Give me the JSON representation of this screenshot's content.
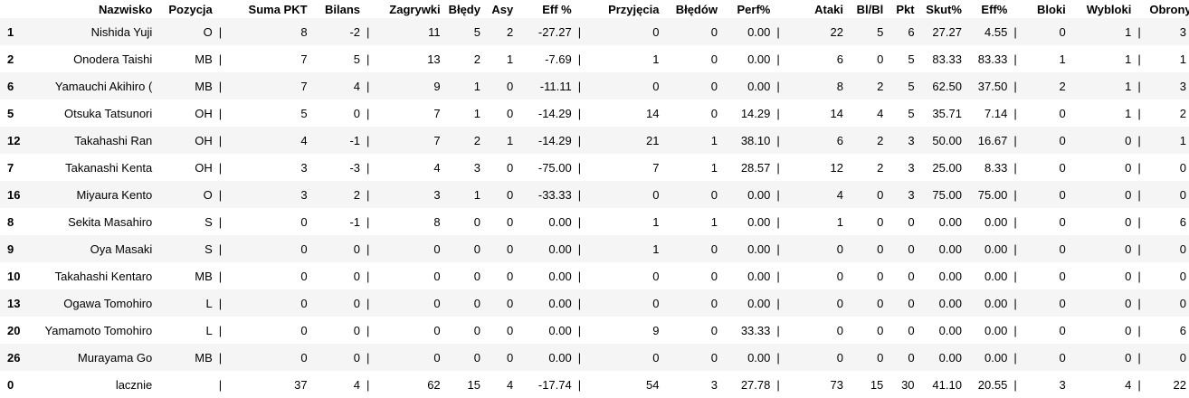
{
  "table": {
    "columns": [
      "",
      "Nazwisko",
      "Pozycja",
      "",
      "Suma PKT",
      "Bilans",
      "",
      "Zagrywki",
      "Błędy",
      "Asy",
      "Eff %",
      "",
      "Przyjęcia",
      "Błędów",
      "Perf%",
      "",
      "Ataki",
      "Bl/Bl",
      "Pkt",
      "Skut%",
      "Eff%",
      "",
      "Bloki",
      "Wybloki",
      "",
      "Obrony"
    ],
    "rows": [
      [
        "1",
        "Nishida Yuji",
        "O",
        "|",
        "8",
        "-2",
        "|",
        "11",
        "5",
        "2",
        "-27.27",
        "|",
        "0",
        "0",
        "0.00",
        "|",
        "22",
        "5",
        "6",
        "27.27",
        "4.55",
        "|",
        "0",
        "1",
        "|",
        "3"
      ],
      [
        "2",
        "Onodera Taishi",
        "MB",
        "|",
        "7",
        "5",
        "|",
        "13",
        "2",
        "1",
        "-7.69",
        "|",
        "1",
        "0",
        "0.00",
        "|",
        "6",
        "0",
        "5",
        "83.33",
        "83.33",
        "|",
        "1",
        "1",
        "|",
        "1"
      ],
      [
        "6",
        "Yamauchi Akihiro (",
        "MB",
        "|",
        "7",
        "4",
        "|",
        "9",
        "1",
        "0",
        "-11.11",
        "|",
        "0",
        "0",
        "0.00",
        "|",
        "8",
        "2",
        "5",
        "62.50",
        "37.50",
        "|",
        "2",
        "1",
        "|",
        "3"
      ],
      [
        "5",
        "Otsuka Tatsunori",
        "OH",
        "|",
        "5",
        "0",
        "|",
        "7",
        "1",
        "0",
        "-14.29",
        "|",
        "14",
        "0",
        "14.29",
        "|",
        "14",
        "4",
        "5",
        "35.71",
        "7.14",
        "|",
        "0",
        "1",
        "|",
        "2"
      ],
      [
        "12",
        "Takahashi Ran",
        "OH",
        "|",
        "4",
        "-1",
        "|",
        "7",
        "2",
        "1",
        "-14.29",
        "|",
        "21",
        "1",
        "38.10",
        "|",
        "6",
        "2",
        "3",
        "50.00",
        "16.67",
        "|",
        "0",
        "0",
        "|",
        "1"
      ],
      [
        "7",
        "Takanashi Kenta",
        "OH",
        "|",
        "3",
        "-3",
        "|",
        "4",
        "3",
        "0",
        "-75.00",
        "|",
        "7",
        "1",
        "28.57",
        "|",
        "12",
        "2",
        "3",
        "25.00",
        "8.33",
        "|",
        "0",
        "0",
        "|",
        "0"
      ],
      [
        "16",
        "Miyaura Kento",
        "O",
        "|",
        "3",
        "2",
        "|",
        "3",
        "1",
        "0",
        "-33.33",
        "|",
        "0",
        "0",
        "0.00",
        "|",
        "4",
        "0",
        "3",
        "75.00",
        "75.00",
        "|",
        "0",
        "0",
        "|",
        "0"
      ],
      [
        "8",
        "Sekita Masahiro",
        "S",
        "|",
        "0",
        "-1",
        "|",
        "8",
        "0",
        "0",
        "0.00",
        "|",
        "1",
        "1",
        "0.00",
        "|",
        "1",
        "0",
        "0",
        "0.00",
        "0.00",
        "|",
        "0",
        "0",
        "|",
        "6"
      ],
      [
        "9",
        "Oya Masaki",
        "S",
        "|",
        "0",
        "0",
        "|",
        "0",
        "0",
        "0",
        "0.00",
        "|",
        "1",
        "0",
        "0.00",
        "|",
        "0",
        "0",
        "0",
        "0.00",
        "0.00",
        "|",
        "0",
        "0",
        "|",
        "0"
      ],
      [
        "10",
        "Takahashi Kentaro",
        "MB",
        "|",
        "0",
        "0",
        "|",
        "0",
        "0",
        "0",
        "0.00",
        "|",
        "0",
        "0",
        "0.00",
        "|",
        "0",
        "0",
        "0",
        "0.00",
        "0.00",
        "|",
        "0",
        "0",
        "|",
        "0"
      ],
      [
        "13",
        "Ogawa Tomohiro",
        "L",
        "|",
        "0",
        "0",
        "|",
        "0",
        "0",
        "0",
        "0.00",
        "|",
        "0",
        "0",
        "0.00",
        "|",
        "0",
        "0",
        "0",
        "0.00",
        "0.00",
        "|",
        "0",
        "0",
        "|",
        "0"
      ],
      [
        "20",
        "Yamamoto Tomohiro",
        "L",
        "|",
        "0",
        "0",
        "|",
        "0",
        "0",
        "0",
        "0.00",
        "|",
        "9",
        "0",
        "33.33",
        "|",
        "0",
        "0",
        "0",
        "0.00",
        "0.00",
        "|",
        "0",
        "0",
        "|",
        "6"
      ],
      [
        "26",
        "Murayama Go",
        "MB",
        "|",
        "0",
        "0",
        "|",
        "0",
        "0",
        "0",
        "0.00",
        "|",
        "0",
        "0",
        "0.00",
        "|",
        "0",
        "0",
        "0",
        "0.00",
        "0.00",
        "|",
        "0",
        "0",
        "|",
        "0"
      ],
      [
        "0",
        "lacznie",
        "",
        "|",
        "37",
        "4",
        "|",
        "62",
        "15",
        "4",
        "-17.74",
        "|",
        "54",
        "3",
        "27.78",
        "|",
        "73",
        "15",
        "30",
        "41.10",
        "20.55",
        "|",
        "3",
        "4",
        "|",
        "22"
      ]
    ]
  }
}
